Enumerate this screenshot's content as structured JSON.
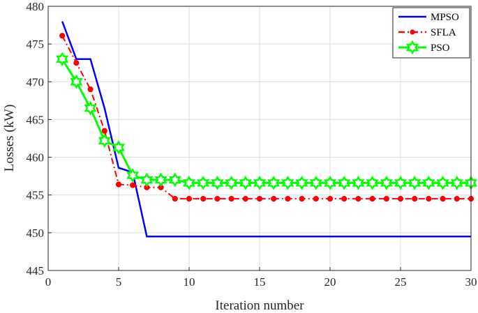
{
  "chart_data": {
    "type": "line",
    "xlabel": "Iteration number",
    "ylabel": "Losses (kW)",
    "xlim": [
      0,
      30
    ],
    "ylim": [
      445,
      480
    ],
    "xticks": [
      0,
      5,
      10,
      15,
      20,
      25,
      30
    ],
    "yticks": [
      445,
      450,
      455,
      460,
      465,
      470,
      475,
      480
    ],
    "grid": true,
    "legend_position": "top-right",
    "series": [
      {
        "name": "MPSO",
        "color": "#0000ff",
        "style": "solid",
        "marker": "none",
        "x": [
          1,
          2,
          3,
          4,
          5,
          6,
          7,
          30
        ],
        "y": [
          478,
          473,
          473,
          466.5,
          458.6,
          458,
          449.5,
          449.5
        ]
      },
      {
        "name": "SFLA",
        "color": "#ff0000",
        "style": "dashdot",
        "marker": "dot",
        "x": [
          1,
          2,
          3,
          4,
          5,
          6,
          7,
          8,
          9,
          10,
          11,
          12,
          13,
          14,
          15,
          16,
          17,
          18,
          19,
          20,
          21,
          22,
          23,
          24,
          25,
          26,
          27,
          28,
          29,
          30
        ],
        "y": [
          476.1,
          472.5,
          469,
          463.5,
          456.4,
          456.3,
          456,
          456,
          454.5,
          454.5,
          454.5,
          454.5,
          454.5,
          454.5,
          454.5,
          454.5,
          454.5,
          454.5,
          454.5,
          454.5,
          454.5,
          454.5,
          454.5,
          454.5,
          454.5,
          454.5,
          454.5,
          454.5,
          454.5,
          454.5
        ]
      },
      {
        "name": "PSO",
        "color": "#00ff00",
        "style": "solid",
        "marker": "hexagram",
        "x": [
          1,
          2,
          3,
          4,
          5,
          6,
          7,
          8,
          9,
          10,
          11,
          12,
          13,
          14,
          15,
          16,
          17,
          18,
          19,
          20,
          21,
          22,
          23,
          24,
          25,
          26,
          27,
          28,
          29,
          30
        ],
        "y": [
          473,
          470,
          466.5,
          462.2,
          461.3,
          457.6,
          457,
          457,
          457,
          456.6,
          456.6,
          456.6,
          456.6,
          456.6,
          456.6,
          456.6,
          456.6,
          456.6,
          456.6,
          456.6,
          456.6,
          456.6,
          456.6,
          456.6,
          456.6,
          456.6,
          456.6,
          456.6,
          456.6,
          456.6
        ]
      }
    ]
  }
}
